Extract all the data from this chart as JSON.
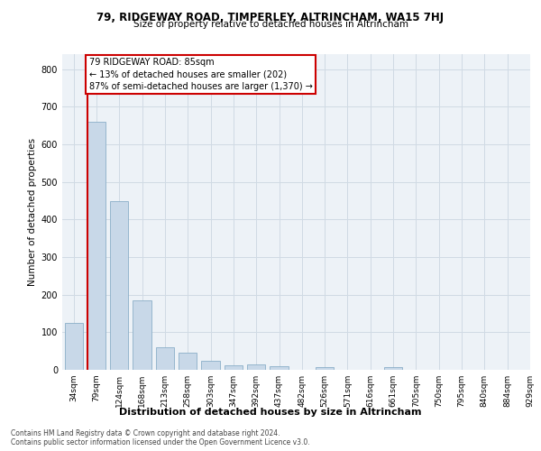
{
  "title1": "79, RIDGEWAY ROAD, TIMPERLEY, ALTRINCHAM, WA15 7HJ",
  "title2": "Size of property relative to detached houses in Altrincham",
  "xlabel": "Distribution of detached houses by size in Altrincham",
  "ylabel": "Number of detached properties",
  "annotation_line1": "79 RIDGEWAY ROAD: 85sqm",
  "annotation_line2": "← 13% of detached houses are smaller (202)",
  "annotation_line3": "87% of semi-detached houses are larger (1,370) →",
  "footer1": "Contains HM Land Registry data © Crown copyright and database right 2024.",
  "footer2": "Contains public sector information licensed under the Open Government Licence v3.0.",
  "bar_centers": [
    0,
    1,
    2,
    3,
    4,
    5,
    6,
    7,
    8,
    9,
    10,
    11,
    12,
    13,
    14,
    15,
    16,
    17,
    18,
    19
  ],
  "bar_heights": [
    125,
    660,
    450,
    185,
    60,
    45,
    25,
    13,
    15,
    10,
    0,
    8,
    0,
    0,
    7,
    0,
    0,
    0,
    0,
    0
  ],
  "x_labels": [
    "34sqm",
    "79sqm",
    "124sqm",
    "168sqm",
    "213sqm",
    "258sqm",
    "303sqm",
    "347sqm",
    "392sqm",
    "437sqm",
    "482sqm",
    "526sqm",
    "571sqm",
    "616sqm",
    "661sqm",
    "705sqm",
    "750sqm",
    "795sqm",
    "840sqm",
    "884sqm",
    "929sqm"
  ],
  "bar_color": "#c8d8e8",
  "bar_edge_color": "#8aafc8",
  "highlight_bar_idx": 1,
  "highlight_color": "#cc0000",
  "annotation_box_color": "#cc0000",
  "ylim": [
    0,
    840
  ],
  "yticks": [
    0,
    100,
    200,
    300,
    400,
    500,
    600,
    700,
    800
  ],
  "grid_color": "#d0dae4",
  "bg_color": "#edf2f7",
  "title1_fontsize": 8.5,
  "title2_fontsize": 7.5,
  "ylabel_fontsize": 7.5,
  "xlabel_fontsize": 8,
  "tick_fontsize": 7,
  "ann_fontsize": 7,
  "footer_fontsize": 5.5
}
